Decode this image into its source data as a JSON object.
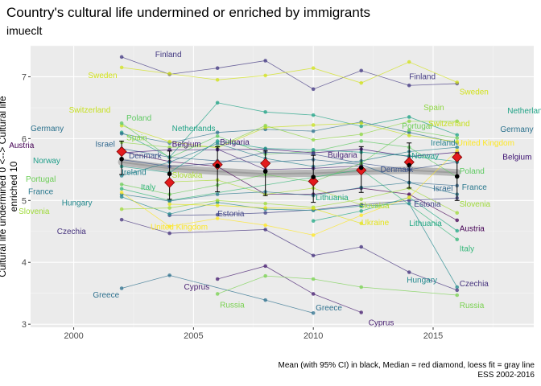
{
  "chart_data": {
    "type": "line",
    "title": "Country's cultural life undermined or enriched by immigrants",
    "subtitle": "imueclt",
    "ylabel": "Cultural life undermined 0 <--> Cultural life enriched 10",
    "xlabel": "",
    "xlim": [
      1998.2,
      2019.2
    ],
    "ylim": [
      2.95,
      7.5
    ],
    "x_ticks": [
      2000,
      2005,
      2010,
      2015
    ],
    "y_ticks": [
      3,
      4,
      5,
      6,
      7
    ],
    "grid": true,
    "caption": [
      "Mean (with 95% CI) in black, Median = red diamond, loess fit = gray line",
      "ESS 2002-2016"
    ],
    "series": [
      {
        "name": "Finland",
        "color": "#443a83",
        "x": [
          2002,
          2004,
          2006,
          2008,
          2010,
          2012,
          2014,
          2016
        ],
        "y": [
          7.32,
          7.04,
          7.14,
          7.26,
          6.8,
          7.1,
          6.86,
          6.89
        ]
      },
      {
        "name": "Sweden",
        "color": "#d2e21b",
        "x": [
          2002,
          2004,
          2006,
          2008,
          2010,
          2012,
          2014,
          2016
        ],
        "y": [
          7.15,
          7.05,
          6.95,
          7.02,
          7.14,
          6.9,
          7.24,
          6.91
        ]
      },
      {
        "name": "Netherlands",
        "color": "#20a386",
        "x": [
          2002,
          2004,
          2006,
          2008,
          2010,
          2012,
          2014,
          2016
        ],
        "y": [
          6.1,
          5.7,
          6.58,
          6.43,
          6.38,
          6.2,
          6.35,
          6.06
        ]
      },
      {
        "name": "Germany",
        "color": "#2c728e",
        "x": [
          2002,
          2004,
          2006,
          2008,
          2010,
          2012,
          2014,
          2016
        ],
        "y": [
          6.08,
          5.93,
          6.1,
          6.15,
          6.12,
          6.27,
          6.1,
          5.93
        ]
      },
      {
        "name": "Switzerland",
        "color": "#c7e020",
        "x": [
          2002,
          2004,
          2006,
          2008,
          2010,
          2012,
          2014,
          2016
        ],
        "y": [
          6.21,
          5.95,
          5.85,
          6.18,
          6.22,
          6.25,
          6.05,
          5.95
        ]
      },
      {
        "name": "Poland",
        "color": "#5ec962",
        "x": [
          2002,
          2004,
          2006,
          2008,
          2010,
          2012,
          2014,
          2016
        ],
        "y": [
          6.25,
          5.69,
          6.04,
          5.75,
          5.79,
          5.96,
          5.86,
          5.38
        ]
      },
      {
        "name": "Spain",
        "color": "#8fd744",
        "x": [
          2002,
          2004,
          2006,
          2008,
          2010,
          2012,
          2014,
          2016
        ],
        "y": [
          5.94,
          5.86,
          5.87,
          6.21,
          5.98,
          6.07,
          6.28,
          6.28
        ]
      },
      {
        "name": "Israel",
        "color": "#31688e",
        "x": [
          2002,
          2004,
          2006,
          2008,
          2010,
          2012,
          2014,
          2016
        ],
        "y": [
          5.84,
          5.7,
          5.64,
          5.62,
          5.66,
          5.58,
          5.29,
          5.24
        ]
      },
      {
        "name": "Austria",
        "color": "#440154",
        "x": [
          2002,
          2004,
          2006,
          2008,
          2010,
          2012,
          2014,
          2016
        ],
        "y": [
          5.79,
          5.63,
          5.55,
          5.1,
          5.1,
          5.2,
          5.1,
          4.68
        ]
      },
      {
        "name": "Belgium",
        "color": "#3b0f70",
        "x": [
          2002,
          2004,
          2006,
          2008,
          2010,
          2012,
          2014,
          2016
        ],
        "y": [
          5.77,
          5.82,
          5.82,
          5.83,
          5.77,
          5.83,
          5.71,
          5.78
        ]
      },
      {
        "name": "Denmark",
        "color": "#3b528b",
        "x": [
          2002,
          2004,
          2006,
          2008,
          2010,
          2012,
          2014,
          2016
        ],
        "y": [
          5.66,
          5.55,
          5.6,
          5.78,
          5.75,
          5.6,
          5.5,
          5.62
        ]
      },
      {
        "name": "Norway",
        "color": "#1f9e89",
        "x": [
          2002,
          2004,
          2006,
          2008,
          2010,
          2012,
          2014,
          2016
        ],
        "y": [
          5.55,
          5.45,
          5.96,
          5.84,
          5.82,
          5.78,
          5.72,
          5.63
        ]
      },
      {
        "name": "Ireland",
        "color": "#26828e",
        "x": [
          2002,
          2004,
          2006,
          2008,
          2010,
          2012,
          2014,
          2016
        ],
        "y": [
          5.4,
          5.62,
          5.92,
          5.68,
          5.55,
          5.64,
          5.79,
          5.86
        ]
      },
      {
        "name": "Bulgaria",
        "color": "#482878",
        "x": [
          2006,
          2008,
          2010,
          2012
        ],
        "y": [
          5.83,
          5.5,
          5.52,
          5.56
        ]
      },
      {
        "name": "Slovakia",
        "color": "#aadc32",
        "x": [
          2004,
          2006,
          2008,
          2010,
          2012
        ],
        "y": [
          5.3,
          5.33,
          5.1,
          5.2,
          4.93
        ]
      },
      {
        "name": "Portugal",
        "color": "#6ece58",
        "x": [
          2002,
          2004,
          2006,
          2008,
          2010,
          2012,
          2014,
          2016
        ],
        "y": [
          5.26,
          5.1,
          5.25,
          5.42,
          5.3,
          5.6,
          6.14,
          6.01
        ]
      },
      {
        "name": "Italy",
        "color": "#35b779",
        "x": [
          2002,
          2004,
          2012,
          2016
        ],
        "y": [
          5.19,
          5.0,
          5.5,
          4.37
        ]
      },
      {
        "name": "France",
        "color": "#2a788e",
        "x": [
          2002,
          2004,
          2006,
          2008,
          2010,
          2012,
          2014,
          2016
        ],
        "y": [
          5.1,
          4.99,
          5.1,
          5.14,
          5.08,
          5.21,
          5.29,
          5.1
        ]
      },
      {
        "name": "Estonia",
        "color": "#414487",
        "x": [
          2004,
          2006,
          2008,
          2010,
          2012,
          2014,
          2016
        ],
        "y": [
          4.76,
          4.77,
          4.8,
          4.85,
          4.93,
          5.0,
          5.04
        ]
      },
      {
        "name": "Hungary",
        "color": "#23898e",
        "x": [
          2002,
          2004,
          2006,
          2008,
          2010,
          2012,
          2014,
          2016
        ],
        "y": [
          5.06,
          4.78,
          4.97,
          4.86,
          4.84,
          4.91,
          4.95,
          3.6
        ]
      },
      {
        "name": "Slovenia",
        "color": "#9fda3a",
        "x": [
          2002,
          2004,
          2006,
          2008,
          2010,
          2012,
          2014,
          2016
        ],
        "y": [
          4.86,
          4.88,
          5.0,
          4.95,
          4.89,
          5.02,
          5.2,
          4.8
        ]
      },
      {
        "name": "Lithuania",
        "color": "#22a884",
        "x": [
          2010,
          2012,
          2014,
          2016
        ],
        "y": [
          4.67,
          4.83,
          5.05,
          4.51
        ]
      },
      {
        "name": "Czechia",
        "color": "#46337e",
        "x": [
          2002,
          2004,
          2008,
          2010,
          2012,
          2014,
          2016
        ],
        "y": [
          4.69,
          4.47,
          4.53,
          4.11,
          4.25,
          3.84,
          3.55
        ]
      },
      {
        "name": "United Kingdom",
        "color": "#fde725",
        "x": [
          2002,
          2004,
          2006,
          2008,
          2010,
          2012,
          2014,
          2016
        ],
        "y": [
          5.13,
          4.58,
          4.71,
          4.6,
          4.44,
          4.76,
          5.05,
          5.81
        ]
      },
      {
        "name": "Ukraine",
        "color": "#e5e419",
        "x": [
          2004,
          2006,
          2008,
          2010,
          2012
        ],
        "y": [
          4.94,
          4.92,
          4.88,
          4.87,
          4.63
        ]
      },
      {
        "name": "Greece",
        "color": "#2d708e",
        "x": [
          2002,
          2004,
          2008,
          2010
        ],
        "y": [
          3.58,
          3.79,
          3.39,
          3.18
        ]
      },
      {
        "name": "Cyprus",
        "color": "#481f71",
        "x": [
          2006,
          2008,
          2010,
          2012
        ],
        "y": [
          3.73,
          3.94,
          3.49,
          3.19
        ]
      },
      {
        "name": "Russia",
        "color": "#7ad151",
        "x": [
          2006,
          2008,
          2010,
          2012,
          2016
        ],
        "y": [
          3.49,
          3.78,
          3.73,
          3.6,
          3.47
        ]
      }
    ],
    "labels": [
      {
        "text": "Finland",
        "series": "Finland",
        "x": 2003.4,
        "y": 7.36,
        "anchor": "start"
      },
      {
        "text": "Sweden",
        "series": "Sweden",
        "x": 2000.6,
        "y": 7.02,
        "anchor": "start"
      },
      {
        "text": "Switzerland",
        "series": "Switzerland",
        "x": 1999.8,
        "y": 6.46,
        "anchor": "start"
      },
      {
        "text": "Poland",
        "series": "Poland",
        "x": 2002.2,
        "y": 6.33,
        "anchor": "start"
      },
      {
        "text": "Germany",
        "series": "Germany",
        "x": 1998.2,
        "y": 6.16,
        "anchor": "start"
      },
      {
        "text": "Netherlands",
        "series": "Netherlands",
        "x": 2004.1,
        "y": 6.16,
        "anchor": "start"
      },
      {
        "text": "Spain",
        "series": "Spain",
        "x": 2002.2,
        "y": 6.01,
        "anchor": "start"
      },
      {
        "text": "Israel",
        "series": "Israel",
        "x": 2000.9,
        "y": 5.91,
        "anchor": "start"
      },
      {
        "text": "Austria",
        "series": "Austria",
        "x": 1997.3,
        "y": 5.89,
        "anchor": "start"
      },
      {
        "text": "Belgium",
        "series": "Belgium",
        "x": 2004.1,
        "y": 5.91,
        "anchor": "start"
      },
      {
        "text": "Bulgaria",
        "series": "Bulgaria",
        "x": 2006.1,
        "y": 5.94,
        "anchor": "start"
      },
      {
        "text": "Denmark",
        "series": "Denmark",
        "x": 2002.3,
        "y": 5.72,
        "anchor": "start"
      },
      {
        "text": "Norway",
        "series": "Norway",
        "x": 1998.3,
        "y": 5.64,
        "anchor": "start"
      },
      {
        "text": "Ireland",
        "series": "Ireland",
        "x": 2002.0,
        "y": 5.45,
        "anchor": "start"
      },
      {
        "text": "Slovakia",
        "series": "Slovakia",
        "x": 2004.1,
        "y": 5.41,
        "anchor": "start"
      },
      {
        "text": "Portugal",
        "series": "Portugal",
        "x": 1998.0,
        "y": 5.34,
        "anchor": "start"
      },
      {
        "text": "Italy",
        "series": "Italy",
        "x": 2002.8,
        "y": 5.21,
        "anchor": "start"
      },
      {
        "text": "France",
        "series": "France",
        "x": 1998.1,
        "y": 5.14,
        "anchor": "start"
      },
      {
        "text": "Hungary",
        "series": "Hungary",
        "x": 1999.5,
        "y": 4.96,
        "anchor": "start"
      },
      {
        "text": "Slovenia",
        "series": "Slovenia",
        "x": 1997.7,
        "y": 4.82,
        "anchor": "start"
      },
      {
        "text": "Czechia",
        "series": "Czechia",
        "x": 1999.3,
        "y": 4.5,
        "anchor": "start"
      },
      {
        "text": "United Kingdom",
        "series": "United Kingdom",
        "x": 2004.4,
        "y": 4.57,
        "anchor": "middle"
      },
      {
        "text": "Estonia",
        "series": "Estonia",
        "x": 2006.0,
        "y": 4.78,
        "anchor": "start"
      },
      {
        "text": "Greece",
        "series": "Greece",
        "x": 2000.8,
        "y": 3.47,
        "anchor": "start"
      },
      {
        "text": "Cyprus",
        "series": "Cyprus",
        "x": 2004.6,
        "y": 3.6,
        "anchor": "start"
      },
      {
        "text": "Russia",
        "series": "Russia",
        "x": 2006.1,
        "y": 3.31,
        "anchor": "start"
      },
      {
        "text": "Bulgaria",
        "series": "Bulgaria",
        "x": 2010.6,
        "y": 5.73,
        "anchor": "start"
      },
      {
        "text": "Lithuania",
        "series": "Lithuania",
        "x": 2010.1,
        "y": 5.04,
        "anchor": "start"
      },
      {
        "text": "Slovakia",
        "series": "Slovakia",
        "x": 2011.9,
        "y": 4.91,
        "anchor": "start"
      },
      {
        "text": "Ukraine",
        "series": "Ukraine",
        "x": 2012.0,
        "y": 4.64,
        "anchor": "start"
      },
      {
        "text": "Greece",
        "series": "Greece",
        "x": 2010.1,
        "y": 3.26,
        "anchor": "start"
      },
      {
        "text": "Cyprus",
        "series": "Cyprus",
        "x": 2012.3,
        "y": 3.02,
        "anchor": "start"
      },
      {
        "text": "Denmark",
        "series": "Denmark",
        "x": 2012.8,
        "y": 5.5,
        "anchor": "start"
      },
      {
        "text": "Finland",
        "series": "Finland",
        "x": 2014.0,
        "y": 7.0,
        "anchor": "start"
      },
      {
        "text": "Sweden",
        "series": "Sweden",
        "x": 2016.1,
        "y": 6.75,
        "anchor": "start"
      },
      {
        "text": "Spain",
        "series": "Spain",
        "x": 2014.6,
        "y": 6.5,
        "anchor": "start"
      },
      {
        "text": "Netherlands",
        "series": "Netherlands",
        "x": 2018.1,
        "y": 6.45,
        "anchor": "start"
      },
      {
        "text": "Portugal",
        "series": "Portugal",
        "x": 2013.7,
        "y": 6.2,
        "anchor": "start"
      },
      {
        "text": "Switzerland",
        "series": "Switzerland",
        "x": 2014.8,
        "y": 6.24,
        "anchor": "start"
      },
      {
        "text": "Germany",
        "series": "Germany",
        "x": 2017.8,
        "y": 6.15,
        "anchor": "start"
      },
      {
        "text": "Ireland",
        "series": "Ireland",
        "x": 2014.9,
        "y": 5.93,
        "anchor": "start"
      },
      {
        "text": "United Kingdom",
        "series": "United Kingdom",
        "x": 2016.0,
        "y": 5.93,
        "anchor": "start"
      },
      {
        "text": "Norway",
        "series": "Norway",
        "x": 2014.1,
        "y": 5.72,
        "anchor": "start"
      },
      {
        "text": "Belgium",
        "series": "Belgium",
        "x": 2017.9,
        "y": 5.7,
        "anchor": "start"
      },
      {
        "text": "Poland",
        "series": "Poland",
        "x": 2016.1,
        "y": 5.47,
        "anchor": "start"
      },
      {
        "text": "Israel",
        "series": "Israel",
        "x": 2015.0,
        "y": 5.19,
        "anchor": "start"
      },
      {
        "text": "France",
        "series": "France",
        "x": 2016.2,
        "y": 5.21,
        "anchor": "start"
      },
      {
        "text": "Estonia",
        "series": "Estonia",
        "x": 2014.2,
        "y": 4.94,
        "anchor": "start"
      },
      {
        "text": "Slovenia",
        "series": "Slovenia",
        "x": 2016.1,
        "y": 4.94,
        "anchor": "start"
      },
      {
        "text": "Lithuania",
        "series": "Lithuania",
        "x": 2014.0,
        "y": 4.63,
        "anchor": "start"
      },
      {
        "text": "Austria",
        "series": "Austria",
        "x": 2016.1,
        "y": 4.54,
        "anchor": "start"
      },
      {
        "text": "Italy",
        "series": "Italy",
        "x": 2016.1,
        "y": 4.22,
        "anchor": "start"
      },
      {
        "text": "Hungary",
        "series": "Hungary",
        "x": 2013.9,
        "y": 3.71,
        "anchor": "start"
      },
      {
        "text": "Czechia",
        "series": "Czechia",
        "x": 2016.1,
        "y": 3.65,
        "anchor": "start"
      },
      {
        "text": "Russia",
        "series": "Russia",
        "x": 2016.1,
        "y": 3.3,
        "anchor": "start"
      }
    ],
    "mean_ci": [
      {
        "x": 2002,
        "mean": 5.67,
        "low": 5.42,
        "high": 5.96
      },
      {
        "x": 2004,
        "mean": 5.43,
        "low": 5.02,
        "high": 5.8
      },
      {
        "x": 2006,
        "mean": 5.56,
        "low": 5.14,
        "high": 5.87
      },
      {
        "x": 2008,
        "mean": 5.47,
        "low": 5.08,
        "high": 5.8
      },
      {
        "x": 2010,
        "mean": 5.38,
        "low": 4.97,
        "high": 5.73
      },
      {
        "x": 2012,
        "mean": 5.53,
        "low": 5.13,
        "high": 5.87
      },
      {
        "x": 2014,
        "mean": 5.57,
        "low": 5.2,
        "high": 5.93
      },
      {
        "x": 2016,
        "mean": 5.39,
        "low": 5.0,
        "high": 5.77
      }
    ],
    "median": [
      {
        "x": 2002,
        "y": 5.79
      },
      {
        "x": 2004,
        "y": 5.29
      },
      {
        "x": 2006,
        "y": 5.58
      },
      {
        "x": 2008,
        "y": 5.6
      },
      {
        "x": 2010,
        "y": 5.31
      },
      {
        "x": 2012,
        "y": 5.49
      },
      {
        "x": 2014,
        "y": 5.62
      },
      {
        "x": 2016,
        "y": 5.7
      }
    ],
    "loess": {
      "x": [
        2002,
        2004,
        2006,
        2008,
        2010,
        2012,
        2014,
        2016
      ],
      "y": [
        5.62,
        5.52,
        5.47,
        5.43,
        5.44,
        5.47,
        5.49,
        5.45
      ]
    }
  }
}
